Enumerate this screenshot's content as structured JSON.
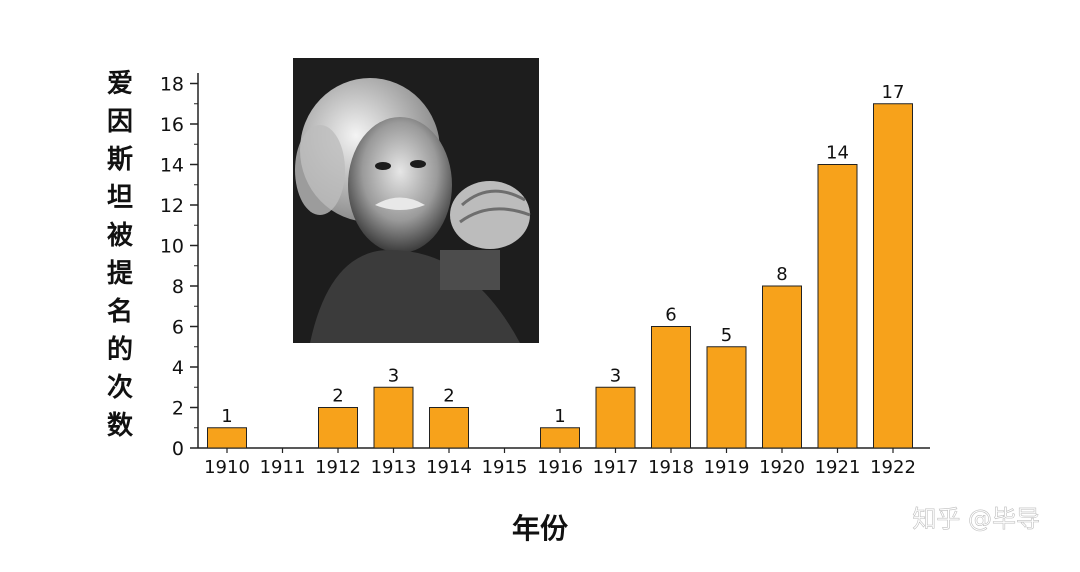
{
  "chart_data": {
    "type": "bar",
    "title": "",
    "xlabel": "年份",
    "ylabel": "爱因斯坦被提名的次数",
    "categories": [
      "1910",
      "1911",
      "1912",
      "1913",
      "1914",
      "1915",
      "1916",
      "1917",
      "1918",
      "1919",
      "1920",
      "1921",
      "1922"
    ],
    "values": [
      1,
      0,
      2,
      3,
      2,
      0,
      1,
      3,
      6,
      5,
      8,
      14,
      17
    ],
    "data_labels": [
      "1",
      "",
      "2",
      "3",
      "2",
      "",
      "1",
      "3",
      "6",
      "5",
      "8",
      "14",
      "17"
    ],
    "ylim": [
      0,
      19
    ],
    "yticks": [
      0,
      2,
      4,
      6,
      8,
      10,
      12,
      14,
      16,
      18
    ],
    "grid": false,
    "bar_color": "#F7A21B",
    "bar_edge_color": "#222222"
  },
  "watermark": "知乎 @毕导",
  "photo": {
    "subject": "portrait photograph (black and white)"
  }
}
